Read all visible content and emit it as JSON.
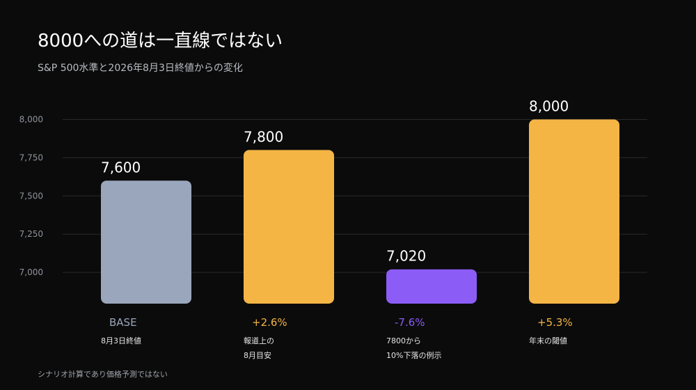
{
  "header": {
    "title": "8000への道は一直線ではない",
    "subtitle": "S&P 500水準と2026年8月3日終値からの変化"
  },
  "footnote": "シナリオ計算であり価格予測ではない",
  "colors": {
    "base": "#9aa6bb",
    "up": "#f4b545",
    "down": "#8b5cf6",
    "grid": "#2a2a2a"
  },
  "chart_data": {
    "type": "bar",
    "categories": [
      "8月3日終値",
      "報道上の8月目安",
      "7800から10%下落の例示",
      "年末の閾値"
    ],
    "values": [
      7600,
      7800,
      7020,
      8000
    ],
    "value_labels": [
      "7,600",
      "7,800",
      "7,020",
      "8,000"
    ],
    "change_labels": [
      "BASE",
      "+2.6%",
      "-7.6%",
      "+5.3%"
    ],
    "sublabels": [
      [
        "8月3日終値"
      ],
      [
        "報道上の",
        "8月目安"
      ],
      [
        "7800から",
        "10%下落の例示"
      ],
      [
        "年末の閾値"
      ]
    ],
    "bar_colors": [
      "base",
      "up",
      "down",
      "up"
    ],
    "yticks": [
      8000,
      7750,
      7500,
      7250,
      7000
    ],
    "ytick_labels": [
      "8,000",
      "7,750",
      "7,500",
      "7,250",
      "7,000"
    ],
    "ylim": [
      6800,
      8000
    ],
    "grid": true
  }
}
